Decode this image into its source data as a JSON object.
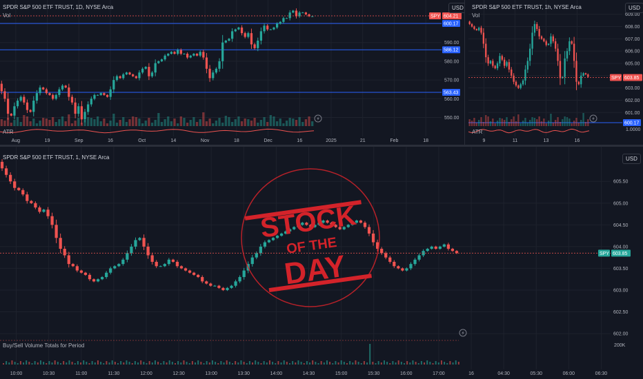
{
  "colors": {
    "up": "#26a69a",
    "down": "#ef5350",
    "grid": "#1e222d",
    "text": "#b2b5be",
    "blue": "#2962ff",
    "stamp": "#d3232a"
  },
  "panes": [
    {
      "title": "SPDR S&P 500 ETF TRUST, 1D, NYSE Arca",
      "sub": "Vol",
      "indicator": "ATR",
      "currency": "USD",
      "ylim": [
        541,
        609
      ],
      "yticks": [
        "550.00",
        "560.00",
        "570.00",
        "580.00",
        "590.00",
        "600.00"
      ],
      "ytick_values": [
        550,
        560,
        570,
        580,
        590,
        600
      ],
      "xticks": [
        "Aug",
        "19",
        "Sep",
        "16",
        "Oct",
        "14",
        "Nov",
        "18",
        "Dec",
        "16",
        "2025",
        "21",
        "Feb",
        "18"
      ],
      "hlines": [
        600.17,
        586.12,
        563.43
      ],
      "hline_labels": [
        "600.17",
        "586.12",
        "563.43"
      ],
      "price_badge": {
        "symbol": "SPY",
        "value": "604.21",
        "y": 604.21
      }
    },
    {
      "title": "SPDR S&P 500 ETF TRUST, 1h, NYSE Arca",
      "sub": "Vol",
      "indicator": "ATR",
      "currency": "USD",
      "ylim": [
        599.5,
        609.6
      ],
      "yticks": [
        "609.00",
        "608.00",
        "607.00",
        "606.00",
        "605.00",
        "604.00",
        "603.00",
        "602.00",
        "601.00"
      ],
      "ytick_values": [
        609,
        608,
        607,
        606,
        605,
        604,
        603,
        602,
        601
      ],
      "xticks": [
        "9",
        "11",
        "13",
        "16"
      ],
      "hlines": [
        600.17
      ],
      "hline_labels": [
        "600.17"
      ],
      "extra_label": "1.0000",
      "price_badge": {
        "symbol": "SPY",
        "value": "603.85",
        "y": 603.85
      }
    },
    {
      "title": "SPDR S&P 500 ETF TRUST, 1, NYSE Arca",
      "sub": "Buy/Sell Volume Totals for Period",
      "currency": "USD",
      "ylim": [
        601.7,
        605.9
      ],
      "yticks": [
        "605.50",
        "605.00",
        "604.50",
        "604.00",
        "603.50",
        "603.00",
        "602.50",
        "602.00"
      ],
      "ytick_values": [
        605.5,
        605,
        604.5,
        604,
        603.5,
        603,
        602.5,
        602
      ],
      "xticks": [
        "10:00",
        "10:30",
        "11:00",
        "11:30",
        "12:00",
        "12:30",
        "13:00",
        "13:30",
        "14:00",
        "14:30",
        "15:00",
        "15:30",
        "16:00",
        "17:00",
        "16",
        "04:30",
        "05:30",
        "06:00",
        "06:30"
      ],
      "volume_label": "200K",
      "price_badge": {
        "symbol": "SPY",
        "value": "603.85",
        "y": 603.85
      }
    }
  ],
  "stamp": {
    "line1": "STOCK",
    "line2": "OF THE",
    "line3": "DAY"
  },
  "chart_data": [
    {
      "type": "candlestick",
      "timeframe": "1D",
      "symbol": "SPY",
      "close": [
        564,
        560,
        552,
        551,
        556,
        559,
        561,
        558,
        554,
        553,
        559,
        563,
        566,
        565,
        563,
        562,
        560,
        562,
        565,
        567,
        566,
        561,
        558,
        552,
        556,
        549,
        553,
        557,
        560,
        562,
        562,
        563,
        562,
        561,
        565,
        570,
        572,
        571,
        573,
        574,
        573,
        572,
        571,
        574,
        576,
        577,
        572,
        574,
        579,
        580,
        581,
        583,
        584,
        585,
        584,
        586,
        584,
        584,
        582,
        583,
        584,
        583,
        585,
        582,
        576,
        571,
        574,
        576,
        580,
        590,
        591,
        592,
        596,
        597,
        598,
        595,
        593,
        595,
        589,
        587,
        591,
        596,
        599,
        597,
        597,
        598,
        600,
        601,
        603,
        603,
        606,
        607,
        604,
        606,
        606,
        605,
        604,
        604
      ],
      "hlines": [
        600.17,
        586.12,
        563.43
      ],
      "last": 604.21
    },
    {
      "type": "candlestick",
      "timeframe": "1h",
      "symbol": "SPY",
      "close": [
        608.2,
        608.0,
        607.8,
        607.7,
        607.9,
        607.5,
        606.6,
        605.5,
        605.0,
        605.2,
        604.8,
        604.6,
        605.0,
        605.6,
        605.3,
        604.8,
        605.1,
        604.5,
        604.0,
        603.5,
        603.2,
        603.0,
        603.3,
        603.6,
        604.5,
        605.2,
        606.2,
        607.5,
        608.2,
        607.8,
        607.2,
        607.0,
        606.8,
        606.5,
        606.6,
        607.2,
        606.8,
        606.2,
        605.2,
        603.8,
        603.9,
        605.4,
        606.0,
        606.8,
        606.6,
        605.2,
        603.5,
        603.3,
        604.0,
        604.2,
        604.1,
        603.9
      ],
      "hlines": [
        600.17
      ],
      "last": 603.85
    },
    {
      "type": "candlestick",
      "timeframe": "1m",
      "symbol": "SPY",
      "close": [
        605.8,
        605.65,
        605.5,
        605.35,
        605.3,
        605.2,
        605.05,
        605.0,
        604.9,
        604.8,
        604.85,
        604.7,
        604.5,
        604.2,
        603.95,
        603.8,
        603.6,
        603.55,
        603.45,
        603.4,
        603.35,
        603.25,
        603.2,
        603.25,
        603.3,
        603.4,
        603.5,
        603.55,
        603.6,
        603.7,
        603.85,
        604.0,
        604.15,
        604.2,
        604.0,
        603.8,
        603.65,
        603.55,
        603.55,
        603.6,
        603.7,
        603.65,
        603.55,
        603.5,
        603.45,
        603.4,
        603.35,
        603.3,
        603.2,
        603.15,
        603.1,
        603.1,
        603.05,
        603.0,
        603.05,
        603.1,
        603.2,
        603.3,
        603.45,
        603.6,
        603.75,
        603.85,
        604.0,
        604.1,
        604.15,
        604.2,
        604.25,
        604.3,
        604.35,
        604.4,
        604.45,
        604.5,
        604.55,
        604.5,
        604.45,
        604.5,
        604.55,
        604.6,
        604.55,
        604.5,
        604.45,
        604.4,
        604.45,
        604.5,
        604.55,
        604.6,
        604.55,
        604.45,
        604.3,
        604.1,
        603.95,
        603.85,
        603.75,
        603.65,
        603.55,
        603.5,
        603.45,
        603.5,
        603.6,
        603.7,
        603.8,
        603.9,
        603.95,
        604.0,
        603.95,
        604.0,
        604.05,
        603.95,
        603.9,
        603.85
      ],
      "last": 603.85
    }
  ]
}
